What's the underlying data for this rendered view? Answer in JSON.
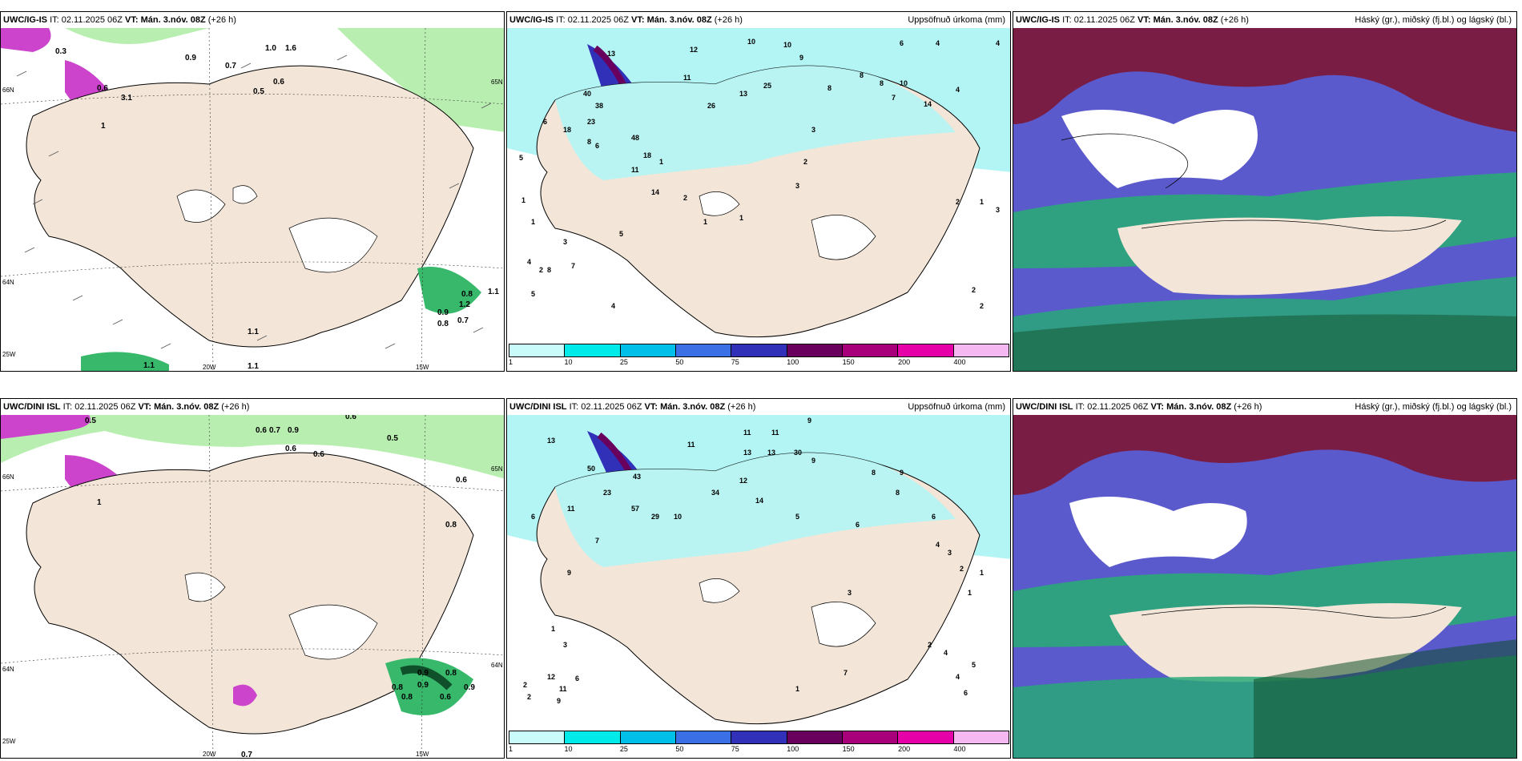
{
  "rows": [
    {
      "model": "UWC/IG-IS",
      "it_label": "IT: 02.11.2025 06Z",
      "vt_label": "VT: Mán. 3.nóv. 08Z",
      "lead": "(+26 h)",
      "panels": {
        "wind": {
          "lat_labels": [
            "66N",
            "64N",
            "25W"
          ],
          "lat_right": [
            "65N"
          ],
          "lon_labels": [
            "20W",
            "15W"
          ],
          "values": [
            "0.3",
            "0.9",
            "1.0",
            "1.6",
            "0.6",
            "0.5",
            "0.7",
            "0.6",
            "3.1",
            "1",
            "1.1",
            "0.9",
            "0.8",
            "1.2",
            "0.8",
            "0.7",
            "1.1",
            "1.1",
            "1.1"
          ]
        },
        "precip": {
          "title_right": "Uppsöfnuð úrkoma (mm)",
          "values": [
            "12",
            "10",
            "10",
            "9",
            "6",
            "4",
            "4",
            "13",
            "11",
            "26",
            "25",
            "13",
            "8",
            "8",
            "8",
            "10",
            "14",
            "7",
            "23",
            "40",
            "38",
            "18",
            "48",
            "18",
            "6",
            "8",
            "5",
            "11",
            "14",
            "2",
            "1",
            "3",
            "5",
            "4",
            "2",
            "1",
            "8",
            "7",
            "6",
            "5",
            "4",
            "3",
            "2",
            "1",
            "3",
            "2",
            "2",
            "3",
            "4",
            "2",
            "1",
            "1",
            "1"
          ]
        },
        "cloud": {
          "title_right": "Háský (gr.), miðský (fj.bl.) og lágský (bl.)"
        }
      }
    },
    {
      "model": "UWC/DINI ISL",
      "it_label": "IT: 02.11.2025 06Z",
      "vt_label": "VT: Mán. 3.nóv. 08Z",
      "lead": "(+26 h)",
      "panels": {
        "wind": {
          "lat_labels": [
            "66N",
            "64N",
            "25W"
          ],
          "lat_right": [
            "65N",
            "64N"
          ],
          "lon_labels": [
            "20W",
            "15W"
          ],
          "values": [
            "0.5",
            "0.6",
            "0.7",
            "0.9",
            "0.6",
            "0.5",
            "0.6",
            "0.6",
            "0.8",
            "0.8",
            "0.9",
            "0.6",
            "0.8",
            "0.9",
            "0.8",
            "0.9",
            "0.7",
            "0.6",
            "1"
          ]
        },
        "precip": {
          "title_right": "Uppsöfnuð úrkoma (mm)",
          "values": [
            "13",
            "9",
            "11",
            "11",
            "11",
            "13",
            "13",
            "30",
            "43",
            "50",
            "23",
            "57",
            "29",
            "34",
            "10",
            "6",
            "7",
            "9",
            "8",
            "9",
            "12",
            "14",
            "11",
            "9",
            "8",
            "6",
            "6",
            "5",
            "4",
            "3",
            "2",
            "1",
            "1",
            "3",
            "12",
            "6",
            "11",
            "2",
            "1",
            "9",
            "2",
            "4",
            "7",
            "6",
            "5",
            "4",
            "3",
            "1",
            "2"
          ]
        },
        "cloud": {
          "title_right": "Háský (gr.), miðský (fj.bl.) og lágský (bl.)"
        }
      }
    }
  ],
  "colorbar": {
    "labels": [
      "1",
      "10",
      "25",
      "50",
      "75",
      "100",
      "150",
      "200",
      "400"
    ],
    "colors": [
      "#c9fbfb",
      "#00eaea",
      "#00bfe8",
      "#3a6fe6",
      "#3030b8",
      "#6a005e",
      "#a8007a",
      "#e600a8",
      "#f5b8f0"
    ]
  },
  "colors": {
    "land": "#f3e6d8",
    "green_light": "#b8efb0",
    "green": "#37b86a",
    "green_dark": "#0f4f2a",
    "purple": "#cc44cc",
    "cyan_light": "#b3f5f5",
    "cyan": "#4fe6e6",
    "cloud_high": "#7a1d44",
    "cloud_mid": "#5a5acc",
    "cloud_low": "#2aa878"
  }
}
